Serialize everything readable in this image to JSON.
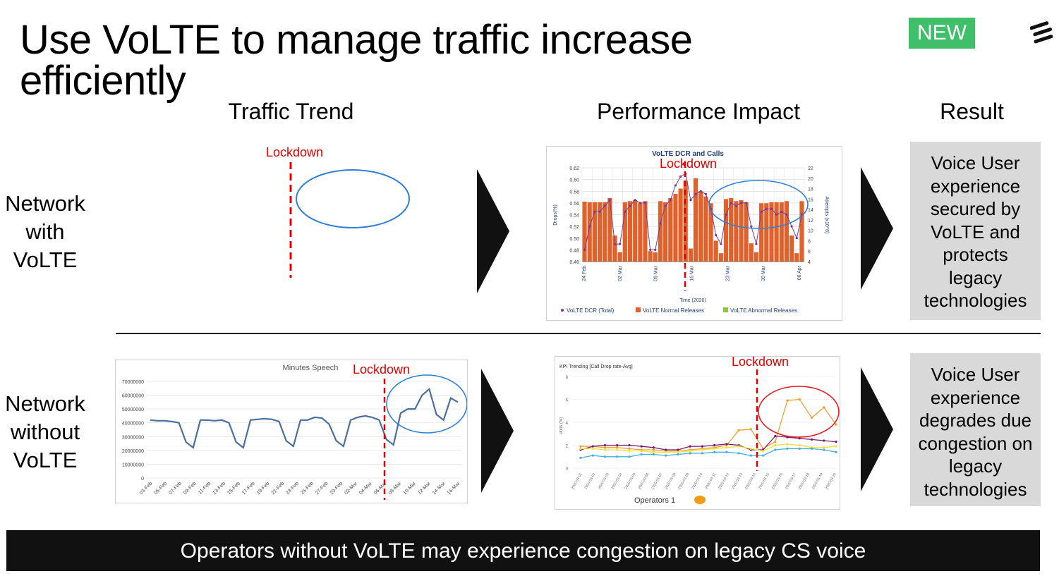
{
  "slide": {
    "title_line1": "Use VoLTE to manage traffic increase",
    "title_line2": "efficiently",
    "badge": "NEW",
    "logo_icon": "ericsson-logo-icon"
  },
  "columns": {
    "traffic": "Traffic Trend",
    "performance": "Performance Impact",
    "result": "Result"
  },
  "rows": {
    "with_volte": {
      "label_lines": [
        "Network",
        "with",
        "VoLTE"
      ],
      "traffic_lockdown": "Lockdown",
      "perf_lockdown": "Lockdown",
      "result_lines": [
        "Voice User",
        "experience",
        "secured by",
        "VoLTE and",
        "protects",
        "legacy",
        "technologies"
      ]
    },
    "without_volte": {
      "label_lines": [
        "Network",
        "without",
        "VoLTE"
      ],
      "traffic_lockdown": "Lockdown",
      "perf_lockdown": "Lockdown",
      "result_lines": [
        "Voice User",
        "experience",
        "degrades  due",
        "congestion on",
        "legacy",
        "technologies"
      ]
    }
  },
  "volte_chart": {
    "title": "VoLTE DCR and Calls",
    "ylabel_left": "Drops(%)",
    "ylabel_right": "Attempts (x10^6)",
    "xlabel": "Time (2020)",
    "y_left_ticks": [
      "0.62",
      "0.60",
      "0.58",
      "0.56",
      "0.54",
      "0.52",
      "0.50",
      "0.48",
      "0.46"
    ],
    "y_right_ticks": [
      "22",
      "20",
      "18",
      "16",
      "14",
      "12",
      "10",
      "8",
      "6",
      "4"
    ],
    "x_ticks": [
      "24 Feb",
      "02 Mar",
      "09 Mar",
      "16 Mar",
      "23 Mar",
      "30 Mar",
      "06 Apr"
    ],
    "legend": [
      "VoLTE DCR (Total)",
      "VoLTE Normal Releases",
      "VoLTE Abnormal Releases"
    ],
    "colors": {
      "bars": "#e0622a",
      "line": "#7b3a96",
      "abnormal": "#8dc63f"
    },
    "bars_attempts": [
      15.5,
      15.4,
      15.4,
      15.4,
      15.4,
      16.2,
      9,
      5.8,
      15.4,
      15.6,
      15.8,
      15.2,
      15.6,
      6,
      5.8,
      15.6,
      15.4,
      16.2,
      17,
      18,
      19.5,
      6.5,
      20,
      17.5,
      16.5,
      15.2,
      8,
      5.6,
      16,
      16.2,
      15.6,
      15.8,
      15.4,
      7.5,
      5.8,
      15.2,
      15.2,
      15.4,
      15.4,
      15.4,
      15.6,
      9,
      5.6,
      15.6
    ],
    "dcr_line": [
      0.48,
      0.52,
      0.545,
      0.545,
      0.555,
      0.565,
      0.49,
      0.49,
      0.545,
      0.555,
      0.565,
      0.56,
      0.56,
      0.48,
      0.48,
      0.525,
      0.555,
      0.565,
      0.59,
      0.605,
      0.61,
      0.565,
      0.575,
      0.58,
      0.575,
      0.55,
      0.505,
      0.49,
      0.54,
      0.56,
      0.555,
      0.56,
      0.56,
      0.52,
      0.49,
      0.545,
      0.55,
      0.55,
      0.54,
      0.545,
      0.54,
      0.52,
      0.5,
      0.54
    ]
  },
  "minutes_chart": {
    "title": "Minutes Speech",
    "y_ticks": [
      "70000000",
      "60000000",
      "50000000",
      "40000000",
      "30000000",
      "20000000",
      "10000000",
      "0"
    ],
    "x_ticks": [
      "03-Feb",
      "05-Feb",
      "07-Feb",
      "09-Feb",
      "11-Feb",
      "13-Feb",
      "15-Feb",
      "17-Feb",
      "19-Feb",
      "21-Feb",
      "23-Feb",
      "25-Feb",
      "27-Feb",
      "29-Feb",
      "02-Mar",
      "04-Mar",
      "06-Mar",
      "08-Mar",
      "10-Mar",
      "12-Mar",
      "14-Mar",
      "16-Mar"
    ],
    "color": "#4a6f9f",
    "values": [
      42,
      41.5,
      41.5,
      41,
      40,
      26,
      22,
      42,
      42,
      41.5,
      42,
      40,
      26,
      22,
      42,
      42.5,
      43,
      42.5,
      41,
      27,
      23,
      42,
      42,
      44,
      43.5,
      39,
      27,
      23,
      42,
      44,
      45,
      44,
      42,
      28,
      24,
      47,
      50,
      50,
      60,
      64.5,
      46,
      42,
      58,
      55
    ]
  },
  "kpi_chart": {
    "title": "KPI Trending [Call Drop rate-Avg]",
    "ylabel": "Units (%)",
    "y_ticks": [
      "8",
      "6",
      "4",
      "2",
      "0"
    ],
    "x_ticks": [
      "2020-03-01",
      "2020-03-02",
      "2020-03-03",
      "2020-03-04",
      "2020-03-05",
      "2020-03-06",
      "2020-03-07",
      "2020-03-08",
      "2020-03-09",
      "2020-03-10",
      "2020-03-11",
      "2020-03-12",
      "2020-03-13",
      "2020-03-14",
      "2020-03-15",
      "2020-03-16",
      "2020-03-17",
      "2020-03-18",
      "2020-03-19",
      "2020-03-20"
    ],
    "legend": "Operators 1",
    "series": [
      {
        "color": "#f0a030",
        "values": [
          1.9,
          1.9,
          1.8,
          1.8,
          1.7,
          1.6,
          1.6,
          1.5,
          1.5,
          1.6,
          1.7,
          1.8,
          2.0,
          3.3,
          3.4,
          1.7,
          2.3,
          5.9,
          6.0,
          4.4,
          5.3,
          3.8
        ]
      },
      {
        "color": "#7a1c6e",
        "values": [
          1.6,
          1.9,
          2.0,
          2.0,
          2.0,
          1.9,
          1.8,
          1.6,
          1.6,
          1.9,
          1.9,
          2.0,
          2.1,
          2.0,
          1.6,
          1.6,
          2.8,
          2.7,
          2.6,
          2.5,
          2.4,
          2.3
        ]
      },
      {
        "color": "#f0e040",
        "values": [
          1.7,
          1.7,
          1.6,
          1.6,
          1.5,
          1.5,
          1.4,
          1.4,
          1.4,
          1.5,
          1.6,
          1.7,
          1.8,
          1.9,
          1.7,
          1.5,
          2.0,
          2.1,
          2.0,
          1.8,
          1.8,
          1.9
        ]
      },
      {
        "color": "#40b0d8",
        "values": [
          0.9,
          1.1,
          1.0,
          1.0,
          1.0,
          1.2,
          1.2,
          1.1,
          1.2,
          1.3,
          1.3,
          1.4,
          1.4,
          1.3,
          1.1,
          1.1,
          1.6,
          1.7,
          1.7,
          1.7,
          1.6,
          1.4
        ]
      }
    ]
  },
  "banner": "Operators without VoLTE may experience congestion on legacy CS voice"
}
